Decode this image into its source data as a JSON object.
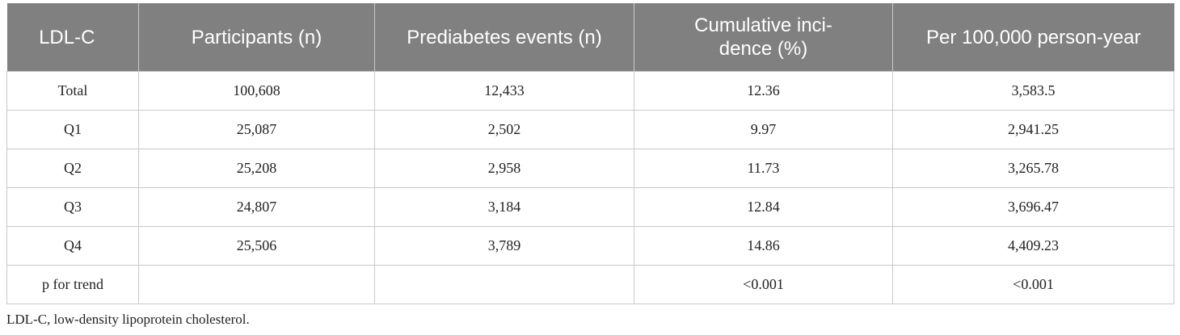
{
  "table": {
    "headers": [
      "LDL-C",
      "Participants (n)",
      "Prediabetes events (n)",
      "Cumulative inci-dence (%)",
      "Per 100,000 person-year"
    ],
    "rows": [
      [
        "Total",
        "100,608",
        "12,433",
        "12.36",
        "3,583.5"
      ],
      [
        "Q1",
        "25,087",
        "2,502",
        "9.97",
        "2,941.25"
      ],
      [
        "Q2",
        "25,208",
        "2,958",
        "11.73",
        "3,265.78"
      ],
      [
        "Q3",
        "24,807",
        "3,184",
        "12.84",
        "3,696.47"
      ],
      [
        "Q4",
        "25,506",
        "3,789",
        "14.86",
        "4,409.23"
      ],
      [
        "p for trend",
        "",
        "",
        "<0.001",
        "<0.001"
      ]
    ]
  },
  "footnote": "LDL-C, low-density lipoprotein cholesterol.",
  "colors": {
    "header_bg": "#808080",
    "header_text": "#ffffff",
    "grid": "#c9c9c9"
  }
}
